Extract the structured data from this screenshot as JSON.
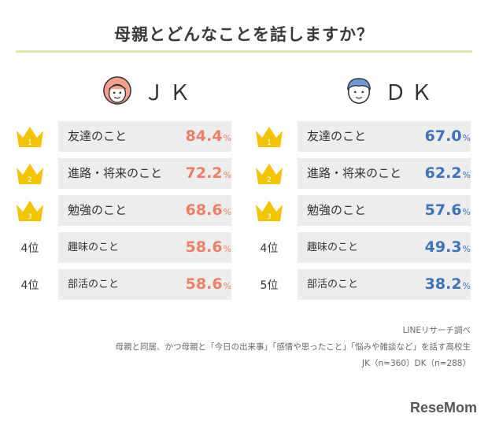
{
  "title": "母親とどんなことを話しますか？",
  "colors": {
    "jk": "#ee7f66",
    "dk": "#3f73b8",
    "crown": "#f5c400",
    "box": "#ededed",
    "rule": "#dfe6a8"
  },
  "chart_data": [
    {
      "type": "table",
      "group": "ＪＫ",
      "rows": [
        {
          "rank": "1",
          "rank_display": "crown",
          "item": "友達のこと",
          "value": 84.4
        },
        {
          "rank": "2",
          "rank_display": "crown",
          "item": "進路・将来のこと",
          "value": 72.2
        },
        {
          "rank": "3",
          "rank_display": "crown",
          "item": "勉強のこと",
          "value": 68.6
        },
        {
          "rank": "4位",
          "rank_display": "text",
          "item": "趣味のこと",
          "value": 58.6
        },
        {
          "rank": "4位",
          "rank_display": "text",
          "item": "部活のこと",
          "value": 58.6
        }
      ],
      "unit": "%"
    },
    {
      "type": "table",
      "group": "ＤＫ",
      "rows": [
        {
          "rank": "1",
          "rank_display": "crown",
          "item": "友達のこと",
          "value": 67.0
        },
        {
          "rank": "2",
          "rank_display": "crown",
          "item": "進路・将来のこと",
          "value": 62.2
        },
        {
          "rank": "3",
          "rank_display": "crown",
          "item": "勉強のこと",
          "value": 57.6
        },
        {
          "rank": "4位",
          "rank_display": "text",
          "item": "趣味のこと",
          "value": 49.3
        },
        {
          "rank": "5位",
          "rank_display": "text",
          "item": "部活のこと",
          "value": 38.2
        }
      ],
      "unit": "%"
    }
  ],
  "notes": {
    "source": "LINEリサーチ調べ",
    "condition": "母親と同居、かつ母親と「今日の出来事」「感情や思ったこと」「悩みや雑談など」を話す高校生",
    "sample": "JK（n=360）DK（n=288）"
  },
  "logo": "ReseMom"
}
